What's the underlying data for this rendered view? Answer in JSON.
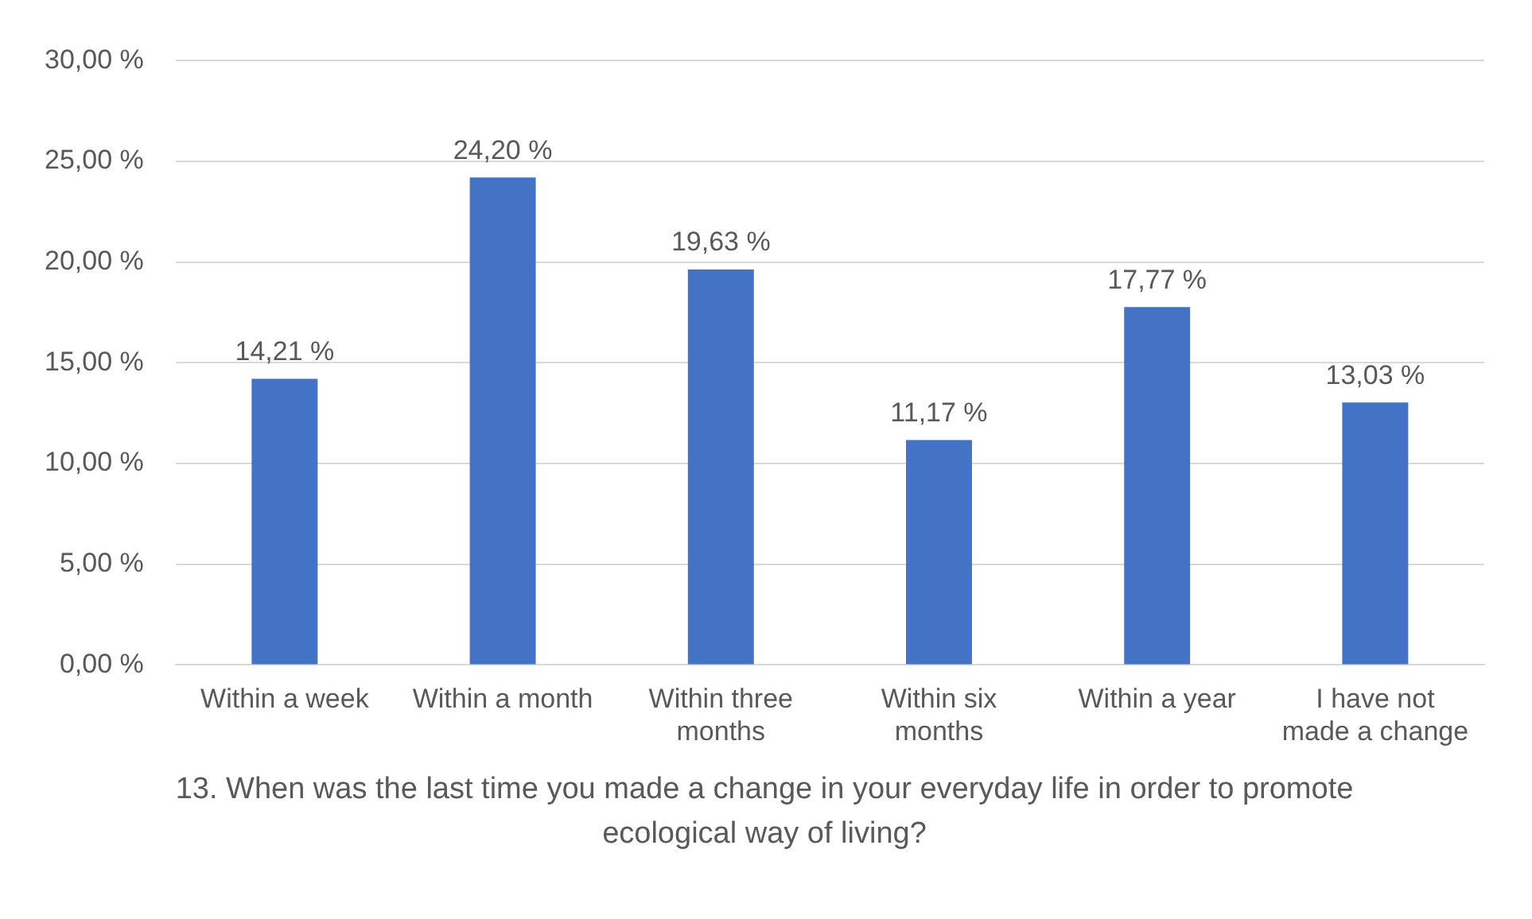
{
  "chart_data": {
    "type": "bar",
    "xlabel": "13. When was the last time you made a change in your everyday life in order to promote ecological way of living?",
    "categories": [
      "Within a week",
      "Within a month",
      "Within three months",
      "Within six months",
      "Within a year",
      "I have not made a change"
    ],
    "values": [
      14.21,
      24.2,
      19.63,
      11.17,
      17.77,
      13.03
    ],
    "value_labels": [
      "14,21 %",
      "24,20 %",
      "19,63 %",
      "11,17 %",
      "17,77 %",
      "13,03 %"
    ],
    "color": "#4472c4",
    "ylim": [
      0,
      30
    ],
    "yticks": [
      {
        "value": 0,
        "label": "0,00 %"
      },
      {
        "value": 5,
        "label": "5,00 %"
      },
      {
        "value": 10,
        "label": "10,00 %"
      },
      {
        "value": 15,
        "label": "15,00 %"
      },
      {
        "value": 20,
        "label": "20,00 %"
      },
      {
        "value": 25,
        "label": "25,00 %"
      },
      {
        "value": 30,
        "label": "30,00 %"
      }
    ],
    "grid": "y"
  }
}
